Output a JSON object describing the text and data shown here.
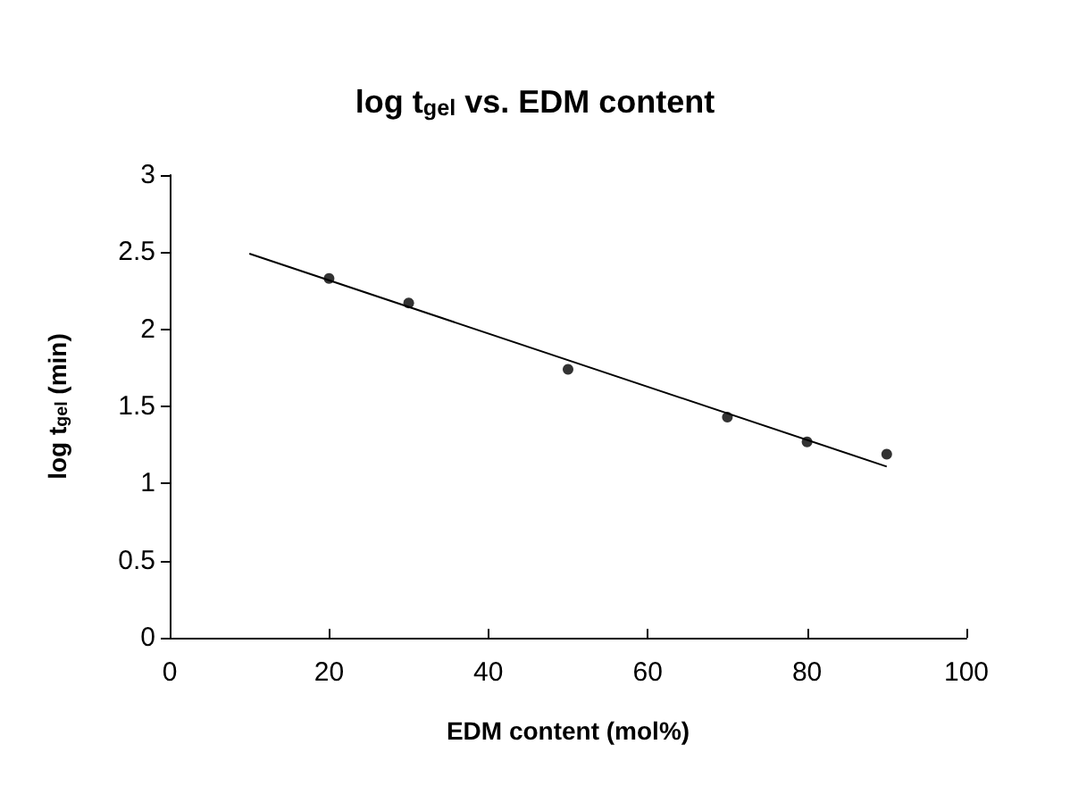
{
  "chart_data": {
    "type": "scatter",
    "title": "log t$_{gel}$ vs. EDM content",
    "xlabel": "EDM content (mol%)",
    "ylabel": "log t$_{gel}$ (min)",
    "series": [
      {
        "color": "#000000",
        "marker": "circle",
        "x": [
          20,
          30,
          50,
          70,
          80,
          90
        ],
        "values": [
          2.33,
          2.17,
          1.74,
          1.43,
          1.27,
          1.19
        ]
      },
      {
        "type": "line",
        "color": "#000000",
        "marker": "none",
        "x": [
          10,
          90
        ],
        "values": [
          2.49,
          1.11
        ]
      }
    ],
    "xlim": [
      0,
      100
    ],
    "xticks": [
      0,
      20,
      40,
      60,
      80,
      100
    ],
    "ylim": [
      0,
      3
    ],
    "yticks": [
      0,
      0.5,
      1,
      1.5,
      2,
      2.5,
      3
    ],
    "grid": false
  }
}
